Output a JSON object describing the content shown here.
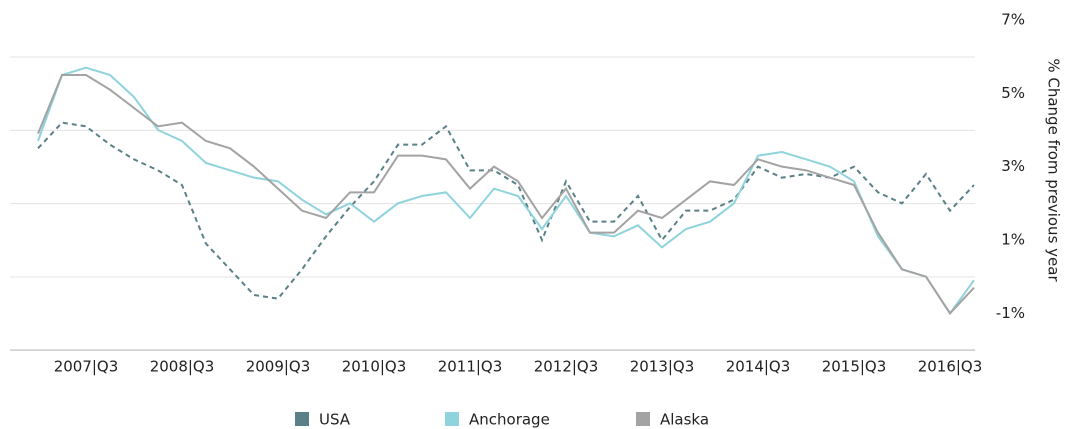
{
  "chart_data": {
    "type": "line",
    "y_axis_label": "% Change from previous year",
    "categories": [
      null,
      null,
      "2007|Q3",
      null,
      null,
      null,
      "2008|Q3",
      null,
      null,
      null,
      "2009|Q3",
      null,
      null,
      null,
      "2010|Q3",
      null,
      null,
      null,
      "2011|Q3",
      null,
      null,
      null,
      "2012|Q3",
      null,
      null,
      null,
      "2013|Q3",
      null,
      null,
      null,
      "2014|Q3",
      null,
      null,
      null,
      "2015|Q3",
      null,
      null,
      null,
      "2016|Q3",
      null
    ],
    "series": [
      {
        "name": "USA",
        "color": "#5b8087",
        "dashed": true,
        "values": [
          3.5,
          4.2,
          4.1,
          3.6,
          3.2,
          2.9,
          2.5,
          0.9,
          0.2,
          -0.5,
          -0.6,
          0.2,
          1.1,
          1.9,
          2.6,
          3.6,
          3.6,
          4.1,
          2.9,
          2.9,
          2.5,
          1.0,
          2.6,
          1.5,
          1.5,
          2.2,
          1.0,
          1.8,
          1.8,
          2.1,
          3.0,
          2.7,
          2.8,
          2.7,
          3.0,
          2.3,
          2.0,
          2.8,
          1.8,
          2.5
        ]
      },
      {
        "name": "Anchorage",
        "color": "#8fd3dc",
        "dashed": false,
        "values": [
          3.7,
          5.5,
          5.7,
          5.5,
          4.9,
          4.0,
          3.7,
          3.1,
          2.9,
          2.7,
          2.6,
          2.1,
          1.7,
          2.0,
          1.5,
          2.0,
          2.2,
          2.3,
          1.6,
          2.4,
          2.2,
          1.3,
          2.2,
          1.2,
          1.1,
          1.4,
          0.8,
          1.3,
          1.5,
          2.0,
          3.3,
          3.4,
          3.2,
          3.0,
          2.6,
          1.1,
          0.2,
          0.0,
          -1.0,
          -0.1
        ]
      },
      {
        "name": "Alaska",
        "color": "#a3a3a3",
        "dashed": false,
        "values": [
          3.9,
          5.5,
          5.5,
          5.1,
          4.6,
          4.1,
          4.2,
          3.7,
          3.5,
          3.0,
          2.4,
          1.8,
          1.6,
          2.3,
          2.3,
          3.3,
          3.3,
          3.2,
          2.4,
          3.0,
          2.6,
          1.6,
          2.4,
          1.2,
          1.2,
          1.8,
          1.6,
          2.1,
          2.6,
          2.5,
          3.2,
          3.0,
          2.9,
          2.7,
          2.5,
          1.2,
          0.2,
          0.0,
          -1.0,
          -0.3
        ]
      }
    ],
    "ylim": [
      -2,
      7
    ],
    "yticks": [
      {
        "value": 7,
        "label": "7%"
      },
      {
        "value": 5,
        "label": "5%"
      },
      {
        "value": 3,
        "label": "3%"
      },
      {
        "value": 1,
        "label": "1%"
      },
      {
        "value": -1,
        "label": "-1%"
      }
    ],
    "grid": true,
    "legend": "bottom"
  }
}
